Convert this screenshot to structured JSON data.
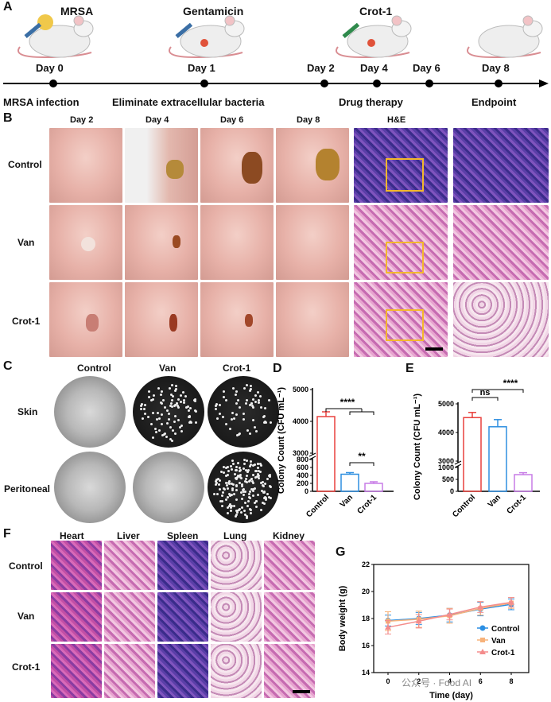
{
  "panels": {
    "A": "A",
    "B": "B",
    "C": "C",
    "D": "D",
    "E": "E",
    "F": "F",
    "G": "G"
  },
  "timeline": {
    "treatments": [
      "MRSA",
      "Gentamicin",
      "Crot-1"
    ],
    "days": [
      "Day 0",
      "Day 1",
      "Day 2",
      "Day 4",
      "Day 6",
      "Day 8"
    ],
    "phases": [
      "MRSA infection",
      "Eliminate extracellular bacteria",
      "Drug therapy",
      "Endpoint"
    ]
  },
  "panelB": {
    "columns": [
      "Day 2",
      "Day 4",
      "Day 6",
      "Day 8",
      "H&E"
    ],
    "rows": [
      "Control",
      "Van",
      "Crot-1"
    ]
  },
  "panelC": {
    "columns": [
      "Control",
      "Van",
      "Crot-1"
    ],
    "rows": [
      "Skin",
      "Peritoneal"
    ]
  },
  "panelF": {
    "columns": [
      "Heart",
      "Liver",
      "Spleen",
      "Lung",
      "Kidney"
    ],
    "rows": [
      "Control",
      "Van",
      "Crot-1"
    ]
  },
  "colors": {
    "control": "#e9413d",
    "van": "#2f8fe0",
    "crot": "#c77ce6",
    "g_control": "#2c8fe3",
    "g_van": "#f7b27a",
    "g_crot": "#f48c8c"
  },
  "watermark": "公众号 · Food AI",
  "chart_data": [
    {
      "type": "bar",
      "panel": "D",
      "categories": [
        "Control",
        "Van",
        "Crot-1"
      ],
      "values": [
        4150,
        430,
        200
      ],
      "errors": [
        150,
        40,
        40
      ],
      "ylabel": "Colony Count (CFU mL⁻¹)",
      "yticks": [
        "0",
        "200",
        "400",
        "600",
        "800",
        "3000",
        "4000",
        "5000"
      ],
      "significance": [
        "****",
        "**"
      ]
    },
    {
      "type": "bar",
      "panel": "E",
      "categories": [
        "Control",
        "Van",
        "Crot-1"
      ],
      "values": [
        4520,
        4200,
        700
      ],
      "errors": [
        180,
        250,
        80
      ],
      "ylabel": "Colony Count (CFU mL⁻¹)",
      "yticks": [
        "0",
        "500",
        "1000",
        "3000",
        "4000",
        "5000"
      ],
      "significance": [
        "****",
        "ns"
      ]
    },
    {
      "type": "line",
      "panel": "G",
      "x": [
        0,
        2,
        4,
        6,
        8
      ],
      "xticks": [
        "0",
        "2",
        "4",
        "6",
        "8"
      ],
      "xlabel": "Time (day)",
      "ylabel": "Body weight (g)",
      "ylim": [
        14,
        22
      ],
      "yticks": [
        "14",
        "16",
        "18",
        "20",
        "22"
      ],
      "series": [
        {
          "name": "Control",
          "values": [
            17.85,
            18.0,
            18.25,
            18.7,
            19.05
          ],
          "errors": [
            0.4,
            0.45,
            0.5,
            0.5,
            0.4
          ]
        },
        {
          "name": "Van",
          "values": [
            17.8,
            17.95,
            18.2,
            18.75,
            19.15
          ],
          "errors": [
            0.7,
            0.6,
            0.55,
            0.5,
            0.4
          ]
        },
        {
          "name": "Crot-1",
          "values": [
            17.35,
            17.8,
            18.3,
            18.85,
            19.2
          ],
          "errors": [
            0.5,
            0.5,
            0.4,
            0.4,
            0.35
          ]
        }
      ]
    }
  ]
}
